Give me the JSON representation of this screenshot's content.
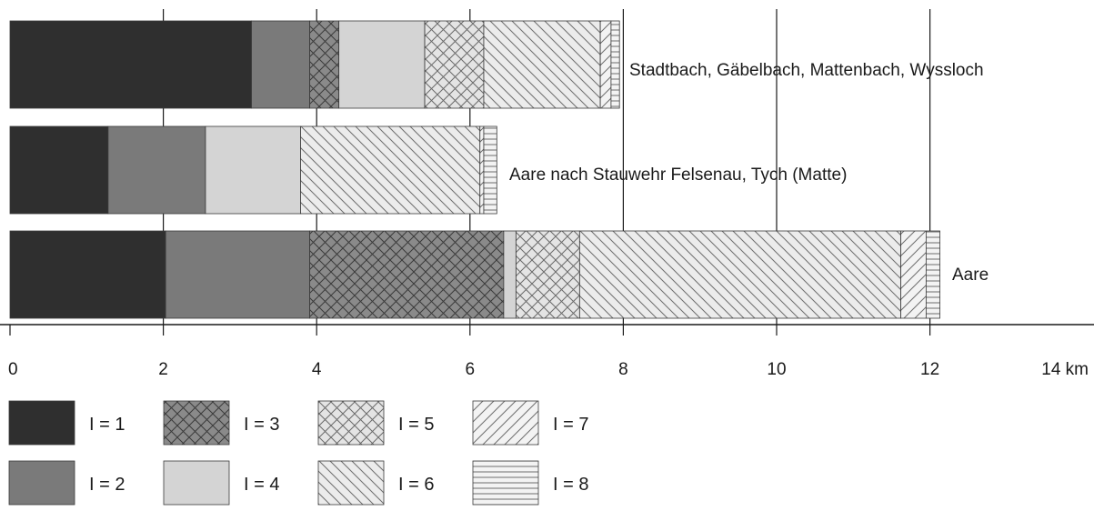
{
  "chart_data": {
    "type": "bar",
    "orientation": "horizontal",
    "stacked": true,
    "unit_label": "km",
    "xlim": [
      0,
      14
    ],
    "x_ticks": [
      0,
      2,
      4,
      6,
      8,
      10,
      12,
      14
    ],
    "x_tick_labels": [
      "0",
      "2",
      "4",
      "6",
      "8",
      "10",
      "12",
      "14 km"
    ],
    "grid": "vertical",
    "categories": [
      "Stadtbach, Gäbelbach, Mattenbach, Wyssloch",
      "Aare nach Stauwehr Felsenau, Tych (Matte)",
      "Aare"
    ],
    "series": [
      {
        "name": "I = 1",
        "values": [
          3.15,
          1.28,
          2.03
        ],
        "color": "#2f2f2f",
        "pattern": "solid"
      },
      {
        "name": "I = 2",
        "values": [
          0.76,
          1.27,
          1.88
        ],
        "color": "#7a7a7a",
        "pattern": "solid"
      },
      {
        "name": "I = 3",
        "values": [
          0.38,
          0.0,
          2.53
        ],
        "color": "#8a8a8a",
        "pattern": "crosshatch-dark"
      },
      {
        "name": "I = 4",
        "values": [
          1.12,
          1.24,
          0.16
        ],
        "color": "#d4d4d4",
        "pattern": "solid"
      },
      {
        "name": "I = 5",
        "values": [
          0.77,
          0.0,
          0.83
        ],
        "color": "#e2e2e2",
        "pattern": "crosshatch-light"
      },
      {
        "name": "I = 6",
        "values": [
          1.52,
          2.34,
          4.19
        ],
        "color": "#ebebeb",
        "pattern": "diagonal-back"
      },
      {
        "name": "I = 7",
        "values": [
          0.14,
          0.05,
          0.33
        ],
        "color": "#f2f2f2",
        "pattern": "diagonal-forward"
      },
      {
        "name": "I = 8",
        "values": [
          0.11,
          0.17,
          0.18
        ],
        "color": "#f2f2f2",
        "pattern": "horizontal-lines"
      }
    ],
    "legend": {
      "placement": "bottom",
      "items": [
        {
          "label": "I = 1",
          "series": 0
        },
        {
          "label": "I = 3",
          "series": 2
        },
        {
          "label": "I = 5",
          "series": 4
        },
        {
          "label": "I = 7",
          "series": 6
        },
        {
          "label": "I = 2",
          "series": 1
        },
        {
          "label": "I = 4",
          "series": 3
        },
        {
          "label": "I = 6",
          "series": 5
        },
        {
          "label": "I = 8",
          "series": 7
        }
      ]
    }
  }
}
